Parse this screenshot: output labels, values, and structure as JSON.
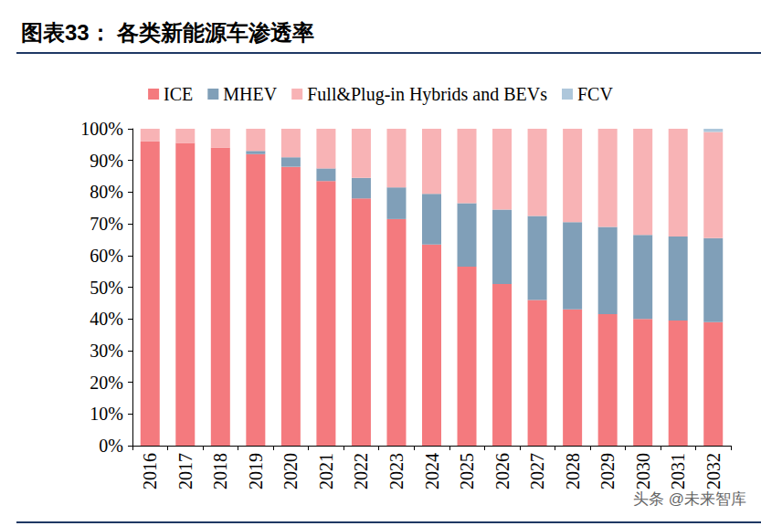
{
  "chart_data": {
    "type": "bar",
    "title": "图表33： 各类新能源车渗透率",
    "annotation": "头条 @未来智库",
    "categories": [
      "2016",
      "2017",
      "2018",
      "2019",
      "2020",
      "2021",
      "2022",
      "2023",
      "2024",
      "2025",
      "2026",
      "2027",
      "2028",
      "2029",
      "2030",
      "2031",
      "2032"
    ],
    "series": [
      {
        "name": "ICE",
        "color": "#f47a7e",
        "values": [
          96,
          95.5,
          94,
          92,
          88,
          83.5,
          78,
          71.5,
          63.5,
          56.5,
          51,
          46,
          43,
          41.5,
          40,
          39.5,
          39
        ]
      },
      {
        "name": "MHEV",
        "color": "#809fb8",
        "values": [
          0,
          0,
          0,
          1,
          3,
          4,
          6.5,
          10,
          16,
          20,
          23.5,
          26.5,
          27.5,
          27.5,
          26.5,
          26.5,
          26.5
        ]
      },
      {
        "name": "Full&Plug-in Hybrids and BEVs",
        "color": "#f8b3b5",
        "values": [
          4,
          4.5,
          6,
          7,
          9,
          12.5,
          15.5,
          18.5,
          20.5,
          23.5,
          25.5,
          27.5,
          29.5,
          31,
          33.5,
          34,
          33.5
        ]
      },
      {
        "name": "FCV",
        "color": "#aec7db",
        "values": [
          0,
          0,
          0,
          0,
          0,
          0,
          0,
          0,
          0,
          0,
          0,
          0,
          0,
          0,
          0,
          0,
          1
        ]
      }
    ],
    "ylim": [
      0,
      100
    ],
    "yticks": [
      {
        "value": 0,
        "label": "0%"
      },
      {
        "value": 10,
        "label": "10%"
      },
      {
        "value": 20,
        "label": "20%"
      },
      {
        "value": 30,
        "label": "30%"
      },
      {
        "value": 40,
        "label": "40%"
      },
      {
        "value": 50,
        "label": "50%"
      },
      {
        "value": 60,
        "label": "60%"
      },
      {
        "value": 70,
        "label": "70%"
      },
      {
        "value": 80,
        "label": "80%"
      },
      {
        "value": 90,
        "label": "90%"
      },
      {
        "value": 100,
        "label": "100%"
      }
    ],
    "stacked": true,
    "legend": "top",
    "grid": false
  }
}
